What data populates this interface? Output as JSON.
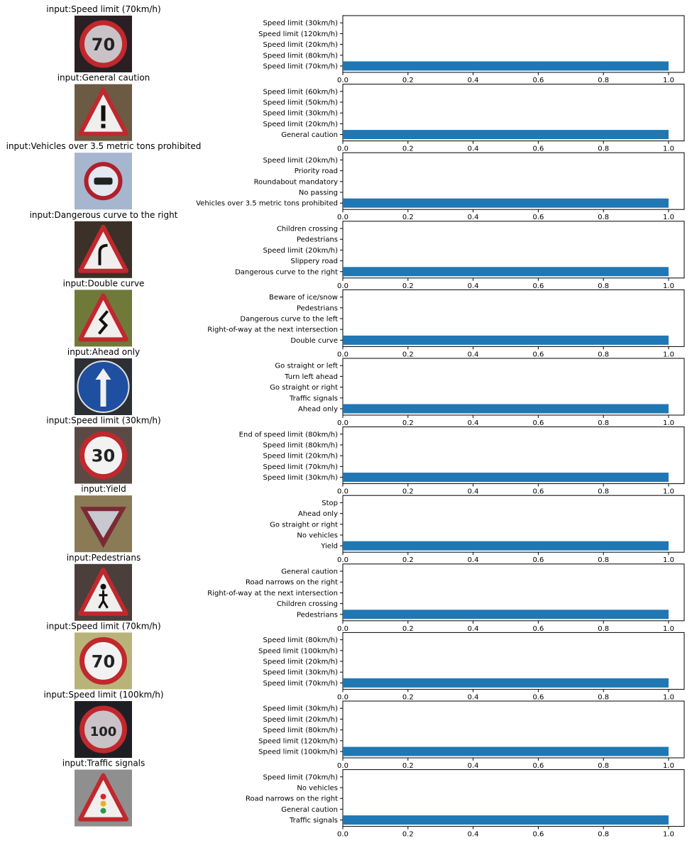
{
  "colors": {
    "bar": "#1f77b4",
    "axes": "#000000"
  },
  "image_panel": {
    "sign_bg_icon": "traffic-sign-thumbnail"
  },
  "chart_data": [
    {
      "type": "bar",
      "orientation": "horizontal",
      "title": "input:Speed limit (70km/h)",
      "sign": "speed-70",
      "categories": [
        "Speed limit (70km/h)",
        "Speed limit (80km/h)",
        "Speed limit (20km/h)",
        "Speed limit (120km/h)",
        "Speed limit (30km/h)"
      ],
      "values": [
        1.0,
        0.0,
        0.0,
        0.0,
        0.0
      ],
      "xlim": [
        0,
        1.05
      ],
      "xticks": [
        "0.0",
        "0.2",
        "0.4",
        "0.6",
        "0.8",
        "1.0"
      ]
    },
    {
      "type": "bar",
      "orientation": "horizontal",
      "title": "input:General caution",
      "sign": "general-caution",
      "categories": [
        "General caution",
        "Speed limit (20km/h)",
        "Speed limit (30km/h)",
        "Speed limit (50km/h)",
        "Speed limit (60km/h)"
      ],
      "values": [
        1.0,
        0.0,
        0.0,
        0.0,
        0.0
      ],
      "xlim": [
        0,
        1.05
      ],
      "xticks": [
        "0.0",
        "0.2",
        "0.4",
        "0.6",
        "0.8",
        "1.0"
      ]
    },
    {
      "type": "bar",
      "orientation": "horizontal",
      "title": "input:Vehicles over 3.5 metric tons prohibited",
      "sign": "vehicles-over-3-5",
      "categories": [
        "Vehicles over 3.5 metric tons prohibited",
        "No passing",
        "Roundabout mandatory",
        "Priority road",
        "Speed limit (20km/h)"
      ],
      "values": [
        1.0,
        0.0,
        0.0,
        0.0,
        0.0
      ],
      "xlim": [
        0,
        1.05
      ],
      "xticks": [
        "0.0",
        "0.2",
        "0.4",
        "0.6",
        "0.8",
        "1.0"
      ]
    },
    {
      "type": "bar",
      "orientation": "horizontal",
      "title": "input:Dangerous curve to the right",
      "sign": "curve-right",
      "categories": [
        "Dangerous curve to the right",
        "Slippery road",
        "Speed limit (20km/h)",
        "Pedestrians",
        "Children crossing"
      ],
      "values": [
        1.0,
        0.0,
        0.0,
        0.0,
        0.0
      ],
      "xlim": [
        0,
        1.05
      ],
      "xticks": [
        "0.0",
        "0.2",
        "0.4",
        "0.6",
        "0.8",
        "1.0"
      ]
    },
    {
      "type": "bar",
      "orientation": "horizontal",
      "title": "input:Double curve",
      "sign": "double-curve",
      "categories": [
        "Double curve",
        "Right-of-way at the next intersection",
        "Dangerous curve to the left",
        "Pedestrians",
        "Beware of ice/snow"
      ],
      "values": [
        1.0,
        0.0,
        0.0,
        0.0,
        0.0
      ],
      "xlim": [
        0,
        1.05
      ],
      "xticks": [
        "0.0",
        "0.2",
        "0.4",
        "0.6",
        "0.8",
        "1.0"
      ]
    },
    {
      "type": "bar",
      "orientation": "horizontal",
      "title": "input:Ahead only",
      "sign": "ahead-only",
      "categories": [
        "Ahead only",
        "Traffic signals",
        "Go straight or right",
        "Turn left ahead",
        "Go straight or left"
      ],
      "values": [
        1.0,
        0.0,
        0.0,
        0.0,
        0.0
      ],
      "xlim": [
        0,
        1.05
      ],
      "xticks": [
        "0.0",
        "0.2",
        "0.4",
        "0.6",
        "0.8",
        "1.0"
      ]
    },
    {
      "type": "bar",
      "orientation": "horizontal",
      "title": "input:Speed limit (30km/h)",
      "sign": "speed-30",
      "categories": [
        "Speed limit (30km/h)",
        "Speed limit (70km/h)",
        "Speed limit (20km/h)",
        "Speed limit (80km/h)",
        "End of speed limit (80km/h)"
      ],
      "values": [
        1.0,
        0.0,
        0.0,
        0.0,
        0.0
      ],
      "xlim": [
        0,
        1.05
      ],
      "xticks": [
        "0.0",
        "0.2",
        "0.4",
        "0.6",
        "0.8",
        "1.0"
      ]
    },
    {
      "type": "bar",
      "orientation": "horizontal",
      "title": "input:Yield",
      "sign": "yield",
      "categories": [
        "Yield",
        "No vehicles",
        "Go straight or right",
        "Ahead only",
        "Stop"
      ],
      "values": [
        1.0,
        0.0,
        0.0,
        0.0,
        0.0
      ],
      "xlim": [
        0,
        1.05
      ],
      "xticks": [
        "0.0",
        "0.2",
        "0.4",
        "0.6",
        "0.8",
        "1.0"
      ]
    },
    {
      "type": "bar",
      "orientation": "horizontal",
      "title": "input:Pedestrians",
      "sign": "pedestrians",
      "categories": [
        "Pedestrians",
        "Children crossing",
        "Right-of-way at the next intersection",
        "Road narrows on the right",
        "General caution"
      ],
      "values": [
        1.0,
        0.0,
        0.0,
        0.0,
        0.0
      ],
      "xlim": [
        0,
        1.05
      ],
      "xticks": [
        "0.0",
        "0.2",
        "0.4",
        "0.6",
        "0.8",
        "1.0"
      ]
    },
    {
      "type": "bar",
      "orientation": "horizontal",
      "title": "input:Speed limit (70km/h)",
      "sign": "speed-70-b",
      "categories": [
        "Speed limit (70km/h)",
        "Speed limit (30km/h)",
        "Speed limit (20km/h)",
        "Speed limit (100km/h)",
        "Speed limit (80km/h)"
      ],
      "values": [
        1.0,
        0.0,
        0.0,
        0.0,
        0.0
      ],
      "xlim": [
        0,
        1.05
      ],
      "xticks": [
        "0.0",
        "0.2",
        "0.4",
        "0.6",
        "0.8",
        "1.0"
      ]
    },
    {
      "type": "bar",
      "orientation": "horizontal",
      "title": "input:Speed limit (100km/h)",
      "sign": "speed-100",
      "categories": [
        "Speed limit (100km/h)",
        "Speed limit (120km/h)",
        "Speed limit (80km/h)",
        "Speed limit (20km/h)",
        "Speed limit (30km/h)"
      ],
      "values": [
        1.0,
        0.0,
        0.0,
        0.0,
        0.0
      ],
      "xlim": [
        0,
        1.05
      ],
      "xticks": [
        "0.0",
        "0.2",
        "0.4",
        "0.6",
        "0.8",
        "1.0"
      ]
    },
    {
      "type": "bar",
      "orientation": "horizontal",
      "title": "input:Traffic signals",
      "sign": "traffic-signals",
      "categories": [
        "Traffic signals",
        "General caution",
        "Road narrows on the right",
        "No vehicles",
        "Speed limit (70km/h)"
      ],
      "values": [
        1.0,
        0.0,
        0.0,
        0.0,
        0.0
      ],
      "xlim": [
        0,
        1.05
      ],
      "xticks": [
        "0.0",
        "0.2",
        "0.4",
        "0.6",
        "0.8",
        "1.0"
      ]
    }
  ]
}
